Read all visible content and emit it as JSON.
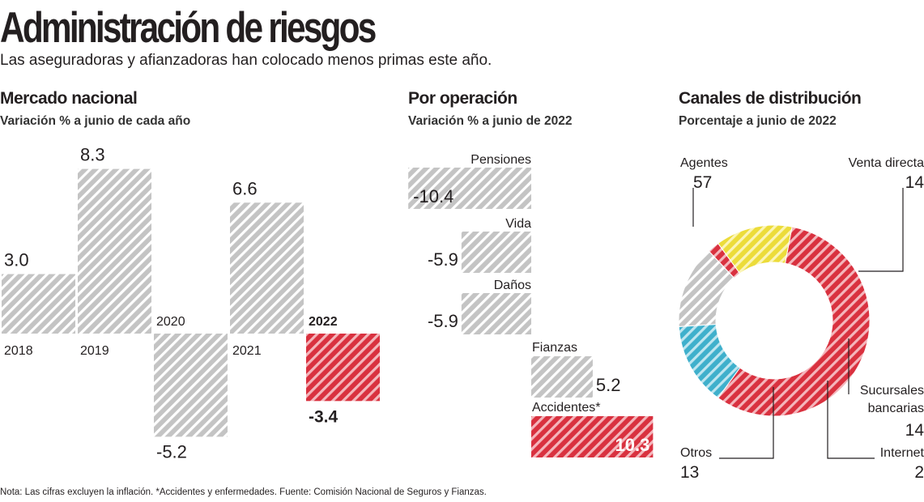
{
  "header": {
    "title": "Administración de riesgos",
    "subtitle": "Las aseguradoras y afianzadoras han colocado menos primas este año."
  },
  "sections": {
    "mercado": {
      "title": "Mercado nacional",
      "subtitle": "Variación % a junio de cada año"
    },
    "operacion": {
      "title": "Por operación",
      "subtitle": "Variación % a junio de 2022"
    },
    "canales": {
      "title": "Canales de distribución",
      "subtitle": "Porcentaje a junio de 2022"
    }
  },
  "footnote": "Nota: Las cifras excluyen la inflación. *Accidentes y enfermedades. Fuente: Comisión Nacional de Seguros y Fianzas.",
  "colors": {
    "gray": "#bdbdbd",
    "red": "#d9313f",
    "blue": "#3fb0cc",
    "yellow": "#f0e040",
    "text": "#231f20"
  },
  "chart_data": [
    {
      "type": "bar",
      "title": "Mercado nacional",
      "subtitle": "Variación % a junio de cada año",
      "categories": [
        "2018",
        "2019",
        "2020",
        "2021",
        "2022"
      ],
      "values": [
        3.0,
        8.3,
        -5.2,
        6.6,
        -3.4
      ],
      "labels": [
        "3.0",
        "8.3",
        "-5.2",
        "6.6",
        "-3.4"
      ],
      "highlight": "2022",
      "ylim": [
        -5.2,
        8.3
      ]
    },
    {
      "type": "bar",
      "orientation": "horizontal",
      "title": "Por operación",
      "subtitle": "Variación % a junio de 2022",
      "categories": [
        "Pensiones",
        "Vida",
        "Daños",
        "Fianzas",
        "Accidentes*"
      ],
      "values": [
        -10.4,
        -5.9,
        -5.9,
        5.2,
        10.3
      ],
      "labels": [
        "-10.4",
        "-5.9",
        "-5.9",
        "5.2",
        "10.3"
      ],
      "highlight": "Accidentes*"
    },
    {
      "type": "pie",
      "donut": true,
      "title": "Canales de distribución",
      "subtitle": "Porcentaje a junio de 2022",
      "categories": [
        "Agentes",
        "Venta directa",
        "Sucursales bancarias",
        "Internet",
        "Otros"
      ],
      "label_lines": [
        [
          "Agentes"
        ],
        [
          "Venta directa"
        ],
        [
          "Sucursales",
          "bancarias"
        ],
        [
          "Internet"
        ],
        [
          "Otros"
        ]
      ],
      "values": [
        57,
        14,
        14,
        2,
        13
      ],
      "labels": [
        "57",
        "14",
        "14",
        "2",
        "13"
      ]
    }
  ]
}
